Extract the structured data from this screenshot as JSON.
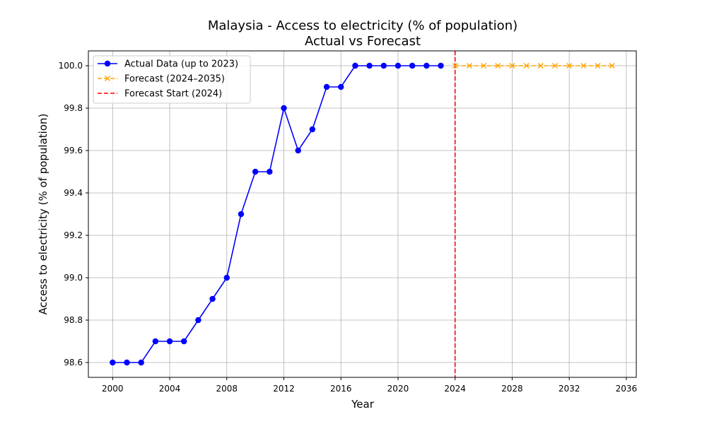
{
  "chart_data": {
    "type": "line",
    "title": "Malaysia - Access to electricity (% of population)",
    "subtitle": "Actual vs Forecast",
    "xlabel": "Year",
    "ylabel": "Access to electricity (% of population)",
    "xlim": [
      1998.3,
      2036.7
    ],
    "ylim": [
      98.53,
      100.07
    ],
    "x_ticks": [
      2000,
      2004,
      2008,
      2012,
      2016,
      2020,
      2024,
      2028,
      2032,
      2036
    ],
    "y_ticks": [
      98.6,
      98.8,
      99.0,
      99.2,
      99.4,
      99.6,
      99.8,
      100.0
    ],
    "grid": true,
    "legend_position": "top-left",
    "series": [
      {
        "name": "Actual Data (up to 2023)",
        "color": "#0000ff",
        "marker": "circle",
        "line_style": "solid",
        "x": [
          2000,
          2001,
          2002,
          2003,
          2004,
          2005,
          2006,
          2007,
          2008,
          2009,
          2010,
          2011,
          2012,
          2013,
          2014,
          2015,
          2016,
          2017,
          2018,
          2019,
          2020,
          2021,
          2022,
          2023
        ],
        "y": [
          98.6,
          98.6,
          98.6,
          98.7,
          98.7,
          98.7,
          98.8,
          98.9,
          99.0,
          99.3,
          99.5,
          99.5,
          99.8,
          99.6,
          99.7,
          99.9,
          99.9,
          100.0,
          100.0,
          100.0,
          100.0,
          100.0,
          100.0,
          100.0
        ]
      },
      {
        "name": "Forecast (2024–2035)",
        "color": "#ffa500",
        "marker": "x",
        "line_style": "dashed",
        "x": [
          2024,
          2025,
          2026,
          2027,
          2028,
          2029,
          2030,
          2031,
          2032,
          2033,
          2034,
          2035
        ],
        "y": [
          100.0,
          100.0,
          100.0,
          100.0,
          100.0,
          100.0,
          100.0,
          100.0,
          100.0,
          100.0,
          100.0,
          100.0
        ]
      }
    ],
    "vlines": [
      {
        "name": "Forecast Start (2024)",
        "x": 2024,
        "color": "#ff0000",
        "line_style": "dashed"
      }
    ]
  }
}
